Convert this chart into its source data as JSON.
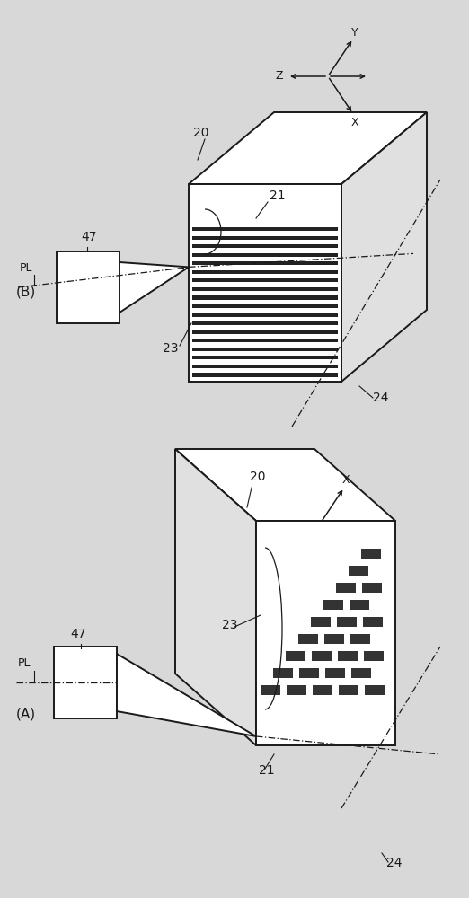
{
  "bg_color": "#d8d8d8",
  "line_color": "#1a1a1a",
  "panel_A_label": "(A)",
  "panel_B_label": "(B)",
  "ref_20": "20",
  "ref_21": "21",
  "ref_23": "23",
  "ref_24": "24",
  "ref_47": "47",
  "ref_PL": "PL"
}
